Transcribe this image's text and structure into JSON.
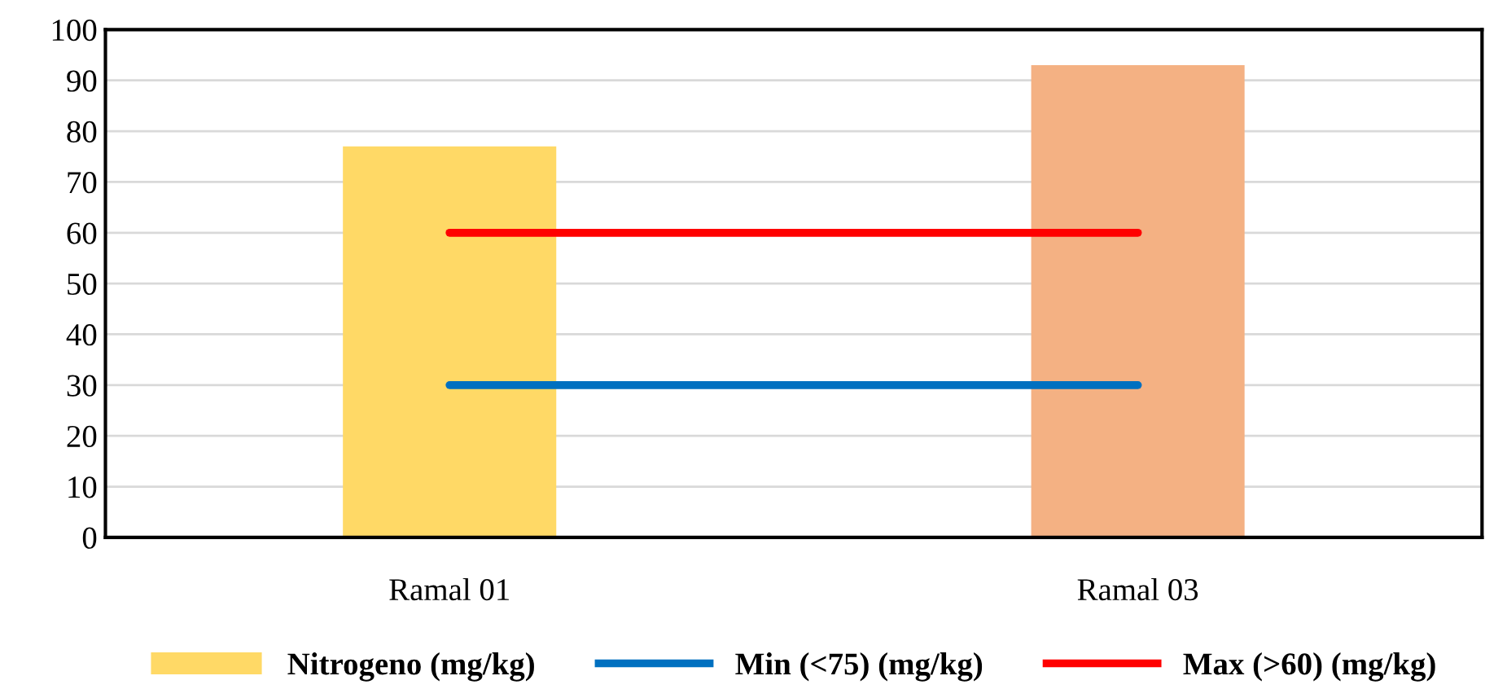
{
  "chart_data": {
    "type": "bar",
    "categories": [
      "Ramal 01",
      "Ramal 03"
    ],
    "series": [
      {
        "name": "Nitrogeno (mg/kg)",
        "colors": [
          "#ffd966",
          "#f4b183"
        ],
        "color": "#ffd966",
        "values": [
          77,
          93
        ]
      },
      {
        "name": "Min (<75) (mg/kg)",
        "type": "line",
        "color": "#0070c0",
        "values": [
          30,
          30
        ]
      },
      {
        "name": "Max (>60) (mg/kg)",
        "type": "line",
        "color": "#ff0000",
        "values": [
          60,
          60
        ]
      }
    ],
    "ylim": [
      0,
      100
    ],
    "yticks": [
      0,
      10,
      20,
      30,
      40,
      50,
      60,
      70,
      80,
      90,
      100
    ],
    "grid": "y",
    "legend": "bottom"
  }
}
